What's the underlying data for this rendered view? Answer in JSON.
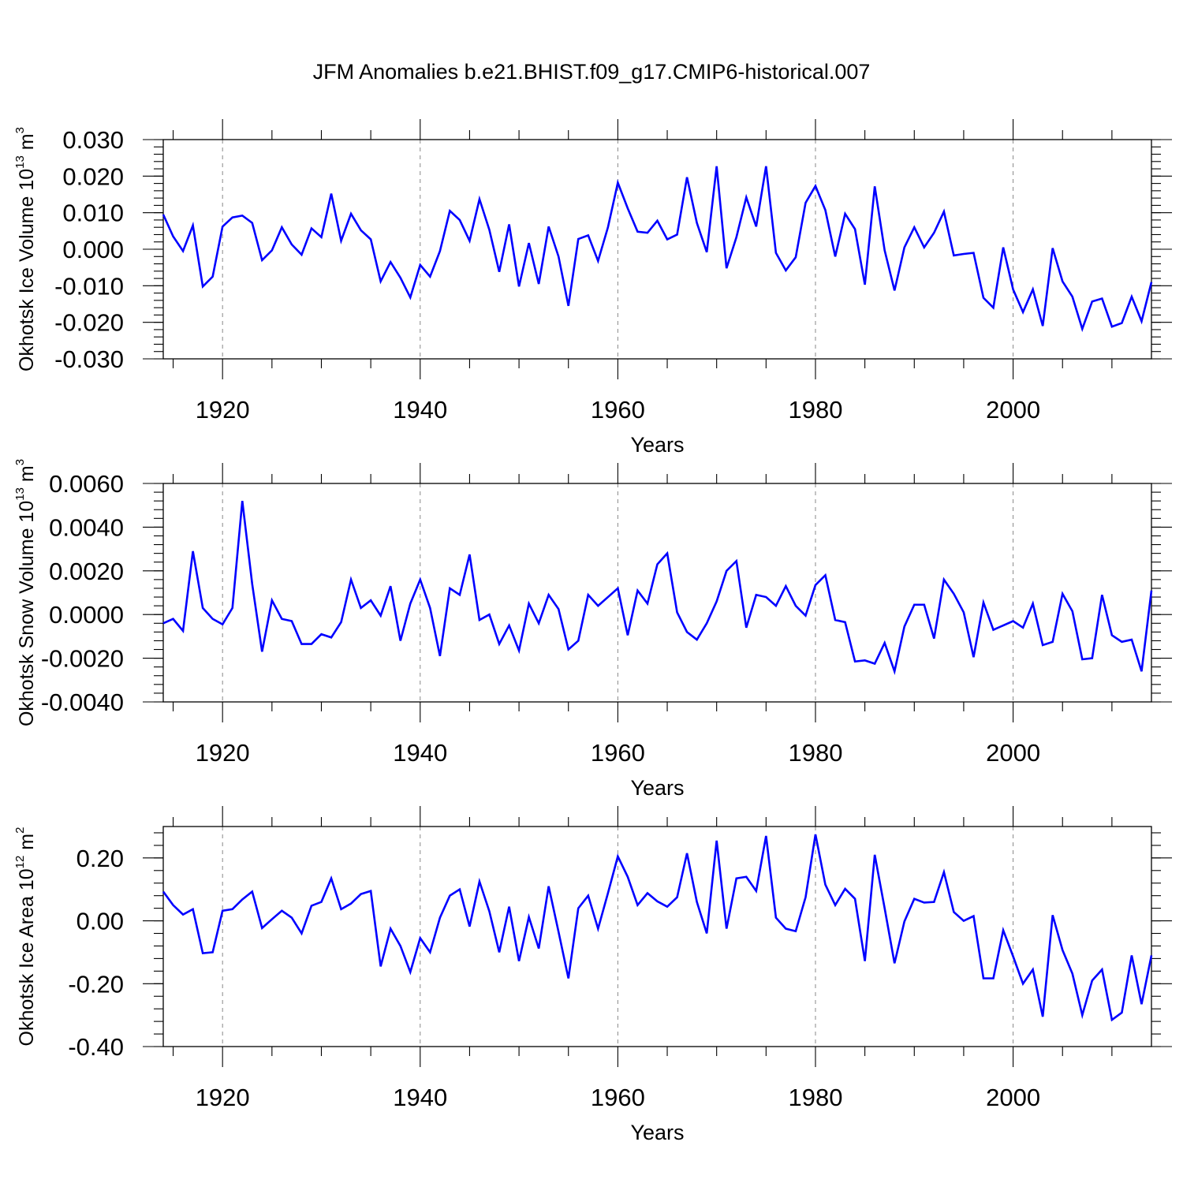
{
  "figure": {
    "title": "JFM Anomalies b.e21.BHIST.f09_g17.CMIP6-historical.007"
  },
  "chart_data": [
    {
      "type": "line",
      "id": "ice_volume",
      "ylabel_main": "Okhotsk Ice Volume 10",
      "ylabel_exp": "13",
      "ylabel_unit": " m",
      "ylabel_unit_exp": "3",
      "xlabel": "Years",
      "xlim": [
        1914,
        2014
      ],
      "ylim": [
        -0.03,
        0.03
      ],
      "xticks": [
        1920,
        1940,
        1960,
        1980,
        2000
      ],
      "yticks": [
        -0.03,
        -0.02,
        -0.01,
        0.0,
        0.01,
        0.02,
        0.03
      ],
      "ytick_labels": [
        "-0.030",
        "-0.020",
        "-0.010",
        "0.000",
        "0.010",
        "0.020",
        "0.030"
      ],
      "grid_x": true,
      "x_start": 1914,
      "series": [
        {
          "name": "Okhotsk Ice Volume",
          "color": "#0000ff",
          "values": [
            0.0095,
            0.0035,
            -0.0005,
            0.0065,
            -0.0102,
            -0.0075,
            0.0062,
            0.0087,
            0.0092,
            0.0072,
            -0.003,
            -0.0003,
            0.006,
            0.0013,
            -0.0015,
            0.0057,
            0.0033,
            0.0152,
            0.0023,
            0.0097,
            0.0052,
            0.0027,
            -0.0088,
            -0.0035,
            -0.0078,
            -0.0132,
            -0.0043,
            -0.0075,
            -0.0005,
            0.0105,
            0.008,
            0.0023,
            0.0137,
            0.0053,
            -0.0062,
            0.0068,
            -0.0102,
            0.0017,
            -0.0095,
            0.0062,
            -0.002,
            -0.0155,
            0.0028,
            0.0038,
            -0.0032,
            0.006,
            0.0182,
            0.0112,
            0.0048,
            0.0045,
            0.0078,
            0.0027,
            0.004,
            0.0197,
            0.0072,
            -0.0008,
            0.0227,
            -0.0052,
            0.0033,
            0.0142,
            0.0062,
            0.0227,
            -0.001,
            -0.0058,
            -0.0022,
            0.0127,
            0.0173,
            0.0107,
            -0.002,
            0.0097,
            0.0055,
            -0.0097,
            0.0172,
            -0.0003,
            -0.0113,
            0.0005,
            0.006,
            0.0005,
            0.0045,
            0.0103,
            -0.0017,
            -0.0013,
            -0.001,
            -0.0133,
            -0.016,
            0.0005,
            -0.011,
            -0.0172,
            -0.011,
            -0.021,
            0.0003,
            -0.0088,
            -0.013,
            -0.0218,
            -0.0143,
            -0.0135,
            -0.0212,
            -0.0202,
            -0.013,
            -0.0197,
            -0.009
          ]
        }
      ]
    },
    {
      "type": "line",
      "id": "snow_volume",
      "ylabel_main": "Okhotsk Snow Volume 10",
      "ylabel_exp": "13",
      "ylabel_unit": " m",
      "ylabel_unit_exp": "3",
      "xlabel": "Years",
      "xlim": [
        1914,
        2014
      ],
      "ylim": [
        -0.004,
        0.006
      ],
      "xticks": [
        1920,
        1940,
        1960,
        1980,
        2000
      ],
      "yticks": [
        -0.004,
        -0.002,
        0.0,
        0.002,
        0.004,
        0.006
      ],
      "ytick_labels": [
        "-0.0040",
        "-0.0020",
        "0.0000",
        "0.0020",
        "0.0040",
        "0.0060"
      ],
      "grid_x": true,
      "x_start": 1914,
      "series": [
        {
          "name": "Okhotsk Snow Volume",
          "color": "#0000ff",
          "values": [
            -0.0004,
            -0.0002,
            -0.00075,
            0.0029,
            0.0003,
            -0.0002,
            -0.00045,
            0.0003,
            0.0052,
            0.0014,
            -0.0017,
            0.00065,
            -0.0002,
            -0.0003,
            -0.00135,
            -0.00135,
            -0.0009,
            -0.00105,
            -0.00035,
            0.0016,
            0.0003,
            0.00065,
            -5e-05,
            0.0013,
            -0.0012,
            0.0005,
            0.0016,
            0.0003,
            -0.0019,
            0.0012,
            0.0009,
            0.00275,
            -0.00025,
            0.0,
            -0.00135,
            -0.0005,
            -0.00165,
            0.0005,
            -0.0004,
            0.0009,
            0.00025,
            -0.0016,
            -0.0012,
            0.0009,
            0.0004,
            0.0008,
            0.0012,
            -0.00095,
            0.0011,
            0.0005,
            0.0023,
            0.0028,
            0.0001,
            -0.0008,
            -0.00115,
            -0.0004,
            0.0006,
            0.002,
            0.00245,
            -0.0006,
            0.0009,
            0.0008,
            0.0004,
            0.0013,
            0.0004,
            -5e-05,
            0.00135,
            0.0018,
            -0.00025,
            -0.00035,
            -0.00215,
            -0.0021,
            -0.00225,
            -0.0013,
            -0.0026,
            -0.00055,
            0.00045,
            0.00045,
            -0.0011,
            0.0016,
            0.00095,
            0.0001,
            -0.00195,
            0.00055,
            -0.0007,
            -0.0005,
            -0.0003,
            -0.0006,
            0.0005,
            -0.0014,
            -0.00125,
            0.00095,
            0.00015,
            -0.00205,
            -0.002,
            0.0009,
            -0.00095,
            -0.00125,
            -0.00115,
            -0.0026,
            0.0011
          ]
        }
      ]
    },
    {
      "type": "line",
      "id": "ice_area",
      "ylabel_main": "Okhotsk Ice Area 10",
      "ylabel_exp": "12",
      "ylabel_unit": " m",
      "ylabel_unit_exp": "2",
      "xlabel": "Years",
      "xlim": [
        1914,
        2014
      ],
      "ylim": [
        -0.4,
        0.3
      ],
      "xticks": [
        1920,
        1940,
        1960,
        1980,
        2000
      ],
      "yticks": [
        -0.4,
        -0.2,
        0.0,
        0.2
      ],
      "ytick_labels": [
        "-0.40",
        "-0.20",
        "0.00",
        "0.20"
      ],
      "grid_x": true,
      "x_start": 1914,
      "series": [
        {
          "name": "Okhotsk Ice Area",
          "color": "#0000ff",
          "values": [
            0.093,
            0.05,
            0.02,
            0.037,
            -0.103,
            -0.1,
            0.032,
            0.037,
            0.068,
            0.093,
            -0.023,
            0.005,
            0.032,
            0.01,
            -0.04,
            0.048,
            0.06,
            0.135,
            0.037,
            0.055,
            0.085,
            0.095,
            -0.145,
            -0.025,
            -0.08,
            -0.163,
            -0.055,
            -0.1,
            0.01,
            0.08,
            0.1,
            -0.018,
            0.125,
            0.03,
            -0.1,
            0.045,
            -0.128,
            0.012,
            -0.088,
            0.11,
            -0.035,
            -0.183,
            0.04,
            0.08,
            -0.025,
            0.088,
            0.205,
            0.14,
            0.05,
            0.088,
            0.062,
            0.045,
            0.075,
            0.215,
            0.06,
            -0.04,
            0.255,
            -0.025,
            0.135,
            0.14,
            0.095,
            0.27,
            0.01,
            -0.025,
            -0.033,
            0.075,
            0.275,
            0.115,
            0.05,
            0.102,
            0.07,
            -0.128,
            0.21,
            0.04,
            -0.135,
            -0.002,
            0.07,
            0.058,
            0.06,
            0.155,
            0.028,
            0.0,
            0.015,
            -0.183,
            -0.183,
            -0.03,
            -0.113,
            -0.2,
            -0.155,
            -0.305,
            0.018,
            -0.093,
            -0.168,
            -0.3,
            -0.19,
            -0.155,
            -0.315,
            -0.292,
            -0.11,
            -0.265,
            -0.11
          ]
        }
      ]
    }
  ]
}
